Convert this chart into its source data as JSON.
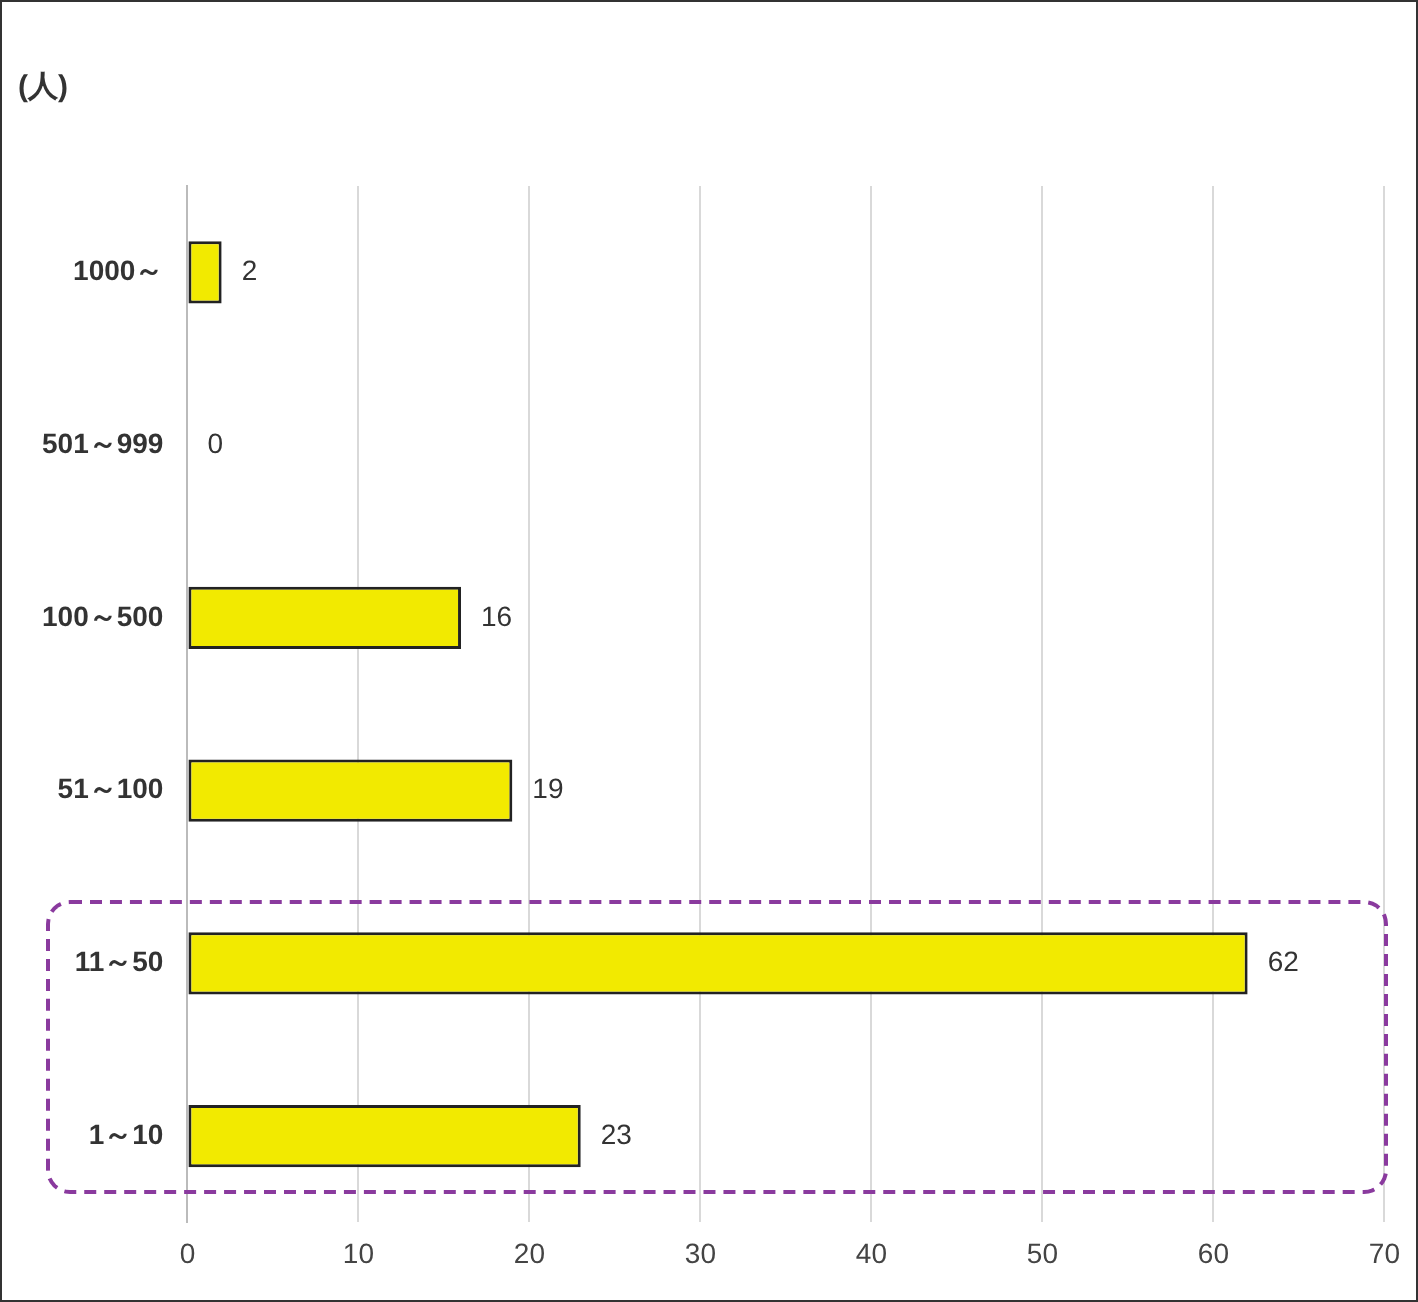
{
  "chart_data": {
    "type": "bar",
    "orientation": "horizontal",
    "title": "(人)",
    "categories": [
      "1000～",
      "501～999",
      "100～500",
      "51～100",
      "11～50",
      "1～10"
    ],
    "values": [
      2,
      0,
      16,
      19,
      62,
      23
    ],
    "color": "#f2ea00",
    "xlim": [
      0,
      70
    ],
    "xticks": [
      0,
      10,
      20,
      30,
      40,
      50,
      60,
      70
    ],
    "grid": "x",
    "legend": false,
    "data_labels": true
  }
}
